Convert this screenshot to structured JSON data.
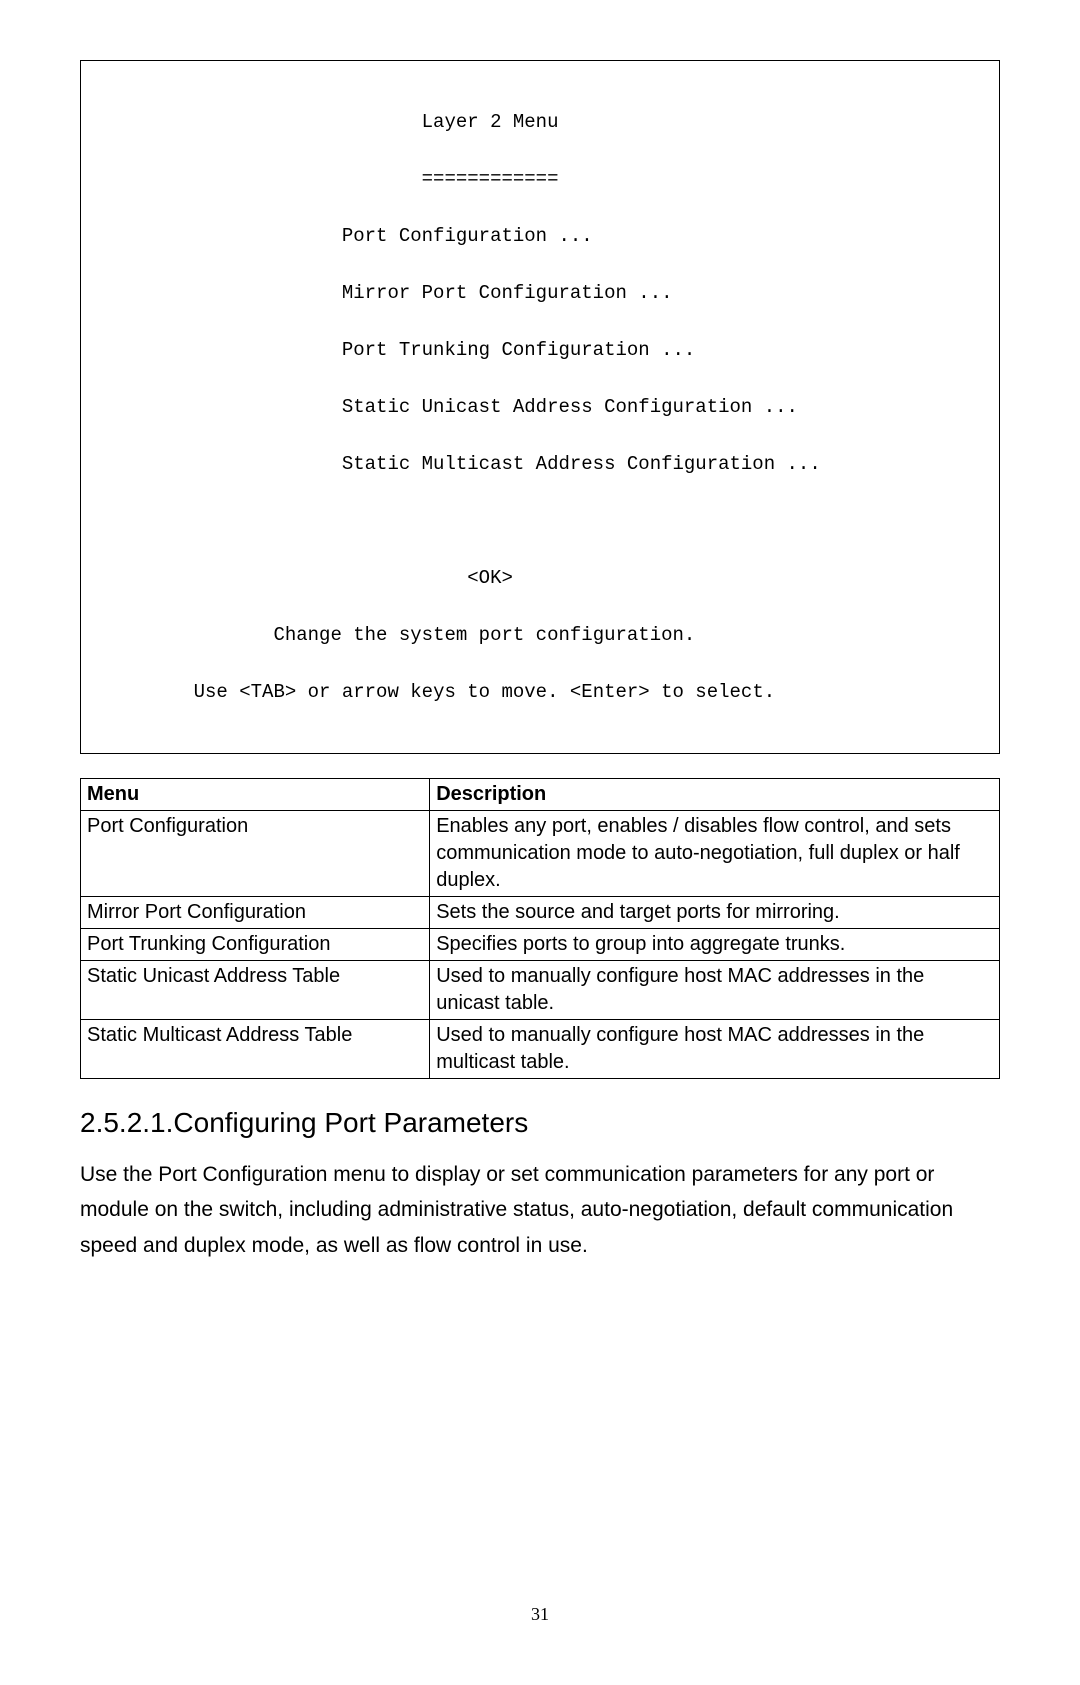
{
  "terminal": {
    "title": "Layer 2 Menu",
    "divider": "============",
    "items": [
      "Port Configuration ...",
      "Mirror Port Configuration ...",
      "Port Trunking Configuration ...",
      "Static Unicast Address Configuration ...",
      "Static Multicast Address Configuration ..."
    ],
    "ok": "<OK>",
    "hint1": "Change the system port configuration.",
    "hint2": "Use <TAB> or arrow keys to move. <Enter> to select."
  },
  "table": {
    "headers": {
      "menu": "Menu",
      "description": "Description"
    },
    "rows": [
      {
        "menu": "Port Configuration",
        "desc": "Enables any port, enables / disables flow control, and sets communication mode to auto-negotiation, full duplex or half duplex."
      },
      {
        "menu": "Mirror Port Configuration",
        "desc": "Sets the source and target ports for mirroring."
      },
      {
        "menu": "Port Trunking Configuration",
        "desc": "Specifies ports to group into aggregate trunks."
      },
      {
        "menu": "Static Unicast Address Table",
        "desc": "Used to manually configure host MAC addresses in the unicast table."
      },
      {
        "menu": "Static Multicast Address Table",
        "desc": "Used to manually configure host MAC addresses in the multicast table."
      }
    ]
  },
  "section": {
    "heading": "2.5.2.1.Configuring Port Parameters",
    "paragraph": "Use the Port Configuration menu to display or set communication parameters for any port or module on the switch, including administrative status, auto-negotiation, default communication speed and duplex mode, as well as flow control in use."
  },
  "pageNumber": "31"
}
